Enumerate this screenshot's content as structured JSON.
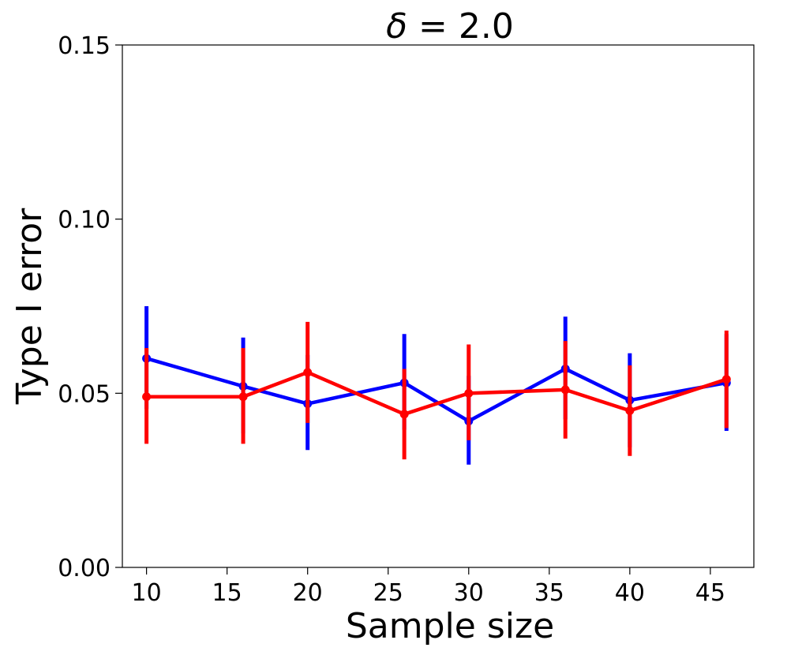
{
  "chart_data": {
    "type": "line",
    "title_symbol": "δ",
    "title_rest": " = 2.0",
    "xlabel": "Sample size",
    "ylabel": "Type I error",
    "xlim": [
      8.5,
      47.7
    ],
    "ylim": [
      0.0,
      0.15
    ],
    "x_ticks": [
      10,
      15,
      20,
      25,
      30,
      35,
      40,
      45
    ],
    "x_tick_labels": [
      "10",
      "15",
      "20",
      "25",
      "30",
      "35",
      "40",
      "45"
    ],
    "y_ticks": [
      0.0,
      0.05,
      0.1,
      0.15
    ],
    "y_tick_labels": [
      "0.00",
      "0.05",
      "0.10",
      "0.15"
    ],
    "grid": false,
    "legend": "none",
    "series": [
      {
        "name": "blue",
        "color": "#0000ff",
        "x": [
          10,
          16,
          20,
          26,
          30,
          36,
          40,
          46
        ],
        "y": [
          0.06,
          0.052,
          0.047,
          0.053,
          0.042,
          0.057,
          0.048,
          0.053
        ],
        "err_low": [
          0.0455,
          0.0385,
          0.0337,
          0.0395,
          0.0295,
          0.0425,
          0.0345,
          0.0392
        ],
        "err_high": [
          0.075,
          0.066,
          0.061,
          0.067,
          0.055,
          0.072,
          0.0615,
          0.067
        ]
      },
      {
        "name": "red",
        "color": "#ff0000",
        "x": [
          10,
          16,
          20,
          26,
          30,
          36,
          40,
          46
        ],
        "y": [
          0.049,
          0.049,
          0.056,
          0.044,
          0.05,
          0.051,
          0.045,
          0.054
        ],
        "err_low": [
          0.0355,
          0.0355,
          0.0415,
          0.031,
          0.0365,
          0.037,
          0.032,
          0.04
        ],
        "err_high": [
          0.063,
          0.063,
          0.0705,
          0.057,
          0.064,
          0.065,
          0.058,
          0.068
        ]
      }
    ]
  }
}
